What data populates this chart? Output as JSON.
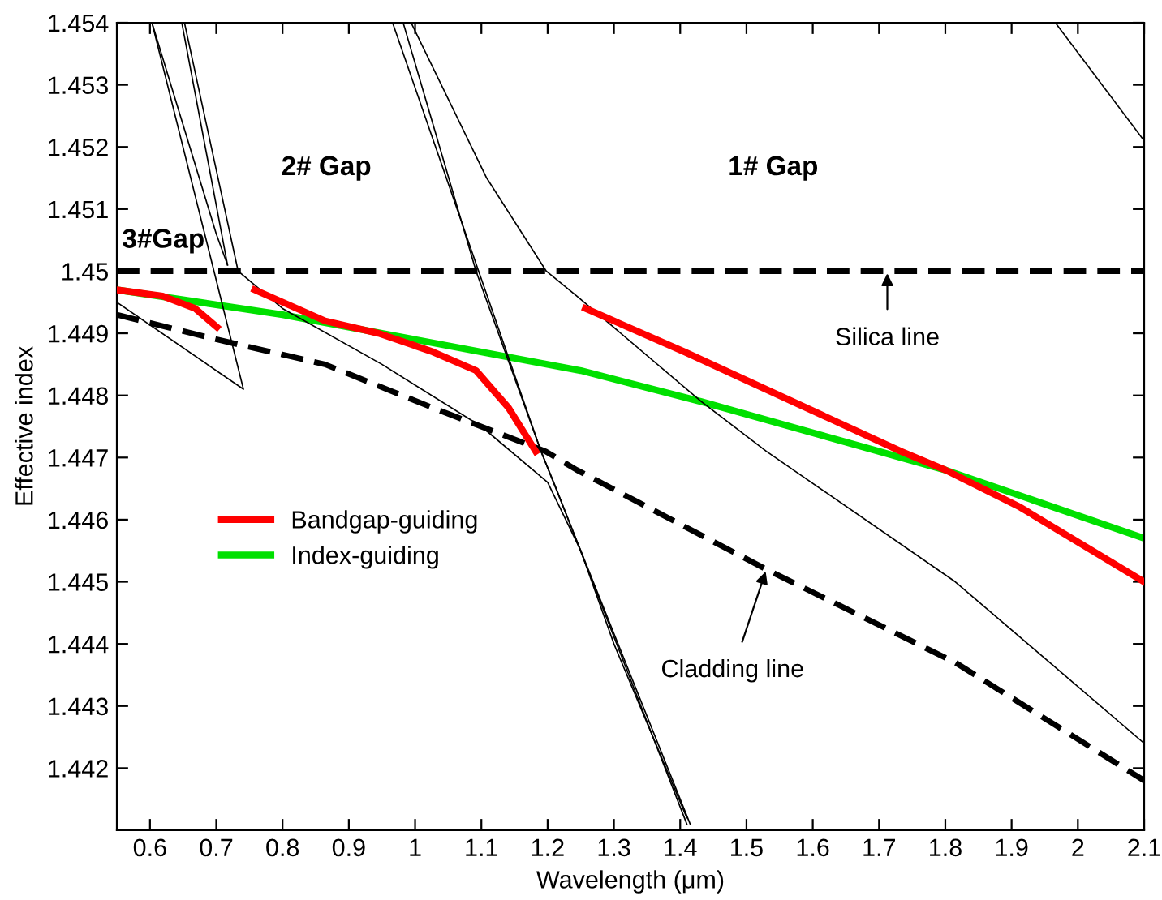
{
  "chart_data": {
    "type": "line",
    "xlabel": "Wavelength (μm)",
    "ylabel": "Effective index",
    "xlim": [
      0.55,
      2.1
    ],
    "ylim": [
      1.441,
      1.454
    ],
    "xticks": [
      0.6,
      0.7,
      0.8,
      0.9,
      1,
      1.1,
      1.2,
      1.3,
      1.4,
      1.5,
      1.6,
      1.7,
      1.8,
      1.9,
      2,
      2.1
    ],
    "yticks": [
      1.442,
      1.443,
      1.444,
      1.445,
      1.446,
      1.447,
      1.448,
      1.449,
      1.45,
      1.451,
      1.452,
      1.453,
      1.454
    ],
    "grid": false,
    "legend": "center left",
    "marker": "none",
    "series": [
      {
        "name": "Bandgap-guiding",
        "color": "#ff0000",
        "x": [
          0.55,
          0.619,
          0.668,
          0.701
        ],
        "values": [
          1.4497,
          1.4496,
          1.4494,
          1.4491
        ]
      },
      {
        "name": "Index-guiding",
        "color": "#00e000",
        "x": [
          0.55,
          0.8,
          1.0,
          1.25,
          1.432,
          1.8,
          2.1
        ],
        "values": [
          1.4497,
          1.4493,
          1.4489,
          1.4484,
          1.4479,
          1.4468,
          1.4457
        ]
      },
      {
        "color": "#ff0000",
        "x": [
          0.758,
          0.864,
          0.945,
          1.027,
          1.092,
          1.141,
          1.182
        ],
        "values": [
          1.4497,
          1.4492,
          1.449,
          1.4487,
          1.4484,
          1.4478,
          1.4471
        ]
      },
      {
        "color": "#ff0000",
        "x": [
          1.257,
          1.407,
          1.57,
          1.733,
          1.8,
          1.913,
          2.1
        ],
        "values": [
          1.4494,
          1.4487,
          1.4479,
          1.4471,
          1.4468,
          1.4462,
          1.445
        ]
      },
      {
        "color": "#000000",
        "line_style": "dashed",
        "x": [
          0.55,
          0.701,
          0.864,
          1.027,
          1.197,
          1.244,
          1.53,
          1.815,
          2.1
        ],
        "values": [
          1.4493,
          1.4489,
          1.4485,
          1.4478,
          1.4471,
          1.4468,
          1.4452,
          1.4437,
          1.4418
        ]
      },
      {
        "color": "#000000",
        "x": [
          0.603,
          0.741,
          0.55
        ],
        "values": [
          1.454,
          1.4481,
          1.4495
        ]
      },
      {
        "color": "#000000",
        "x": [
          0.603,
          0.7,
          0.717
        ],
        "values": [
          1.454,
          1.4506,
          1.4501
        ]
      },
      {
        "color": "#000000",
        "x": [
          0.648,
          0.717
        ],
        "values": [
          1.454,
          1.4501
        ]
      },
      {
        "color": "#000000",
        "x": [
          0.652,
          0.733,
          0.8,
          0.95,
          1.1,
          1.2,
          1.25,
          1.3,
          1.41
        ],
        "values": [
          1.454,
          1.45,
          1.4494,
          1.4485,
          1.4475,
          1.4466,
          1.4455,
          1.444,
          1.4412
        ]
      },
      {
        "color": "#000000",
        "x": [
          0.966,
          1.19,
          1.213,
          1.41
        ],
        "values": [
          1.454,
          1.4471,
          1.4465,
          1.4411
        ]
      },
      {
        "color": "#000000",
        "x": [
          0.982,
          1.092,
          1.19,
          1.415
        ],
        "values": [
          1.454,
          1.45,
          1.4471,
          1.4411
        ]
      },
      {
        "color": "#000000",
        "x": [
          0.994,
          1.108,
          1.198,
          1.244,
          1.432,
          1.53,
          1.815,
          2.1
        ],
        "values": [
          1.454,
          1.4515,
          1.45,
          1.4496,
          1.4479,
          1.4471,
          1.445,
          1.4424
        ]
      },
      {
        "color": "#000000",
        "x": [
          1.966,
          2.1
        ],
        "values": [
          1.454,
          1.4521
        ]
      }
    ],
    "ref_lines": [
      {
        "axis": "y",
        "value": 1.45,
        "label": "Silica line",
        "color": "#000000",
        "line_style": "dashed"
      }
    ],
    "annotations": [
      "3#Gap",
      "2# Gap",
      "1# Gap",
      {
        "text": "Cladding line",
        "x": 1.53,
        "y": 1.4452
      }
    ]
  }
}
